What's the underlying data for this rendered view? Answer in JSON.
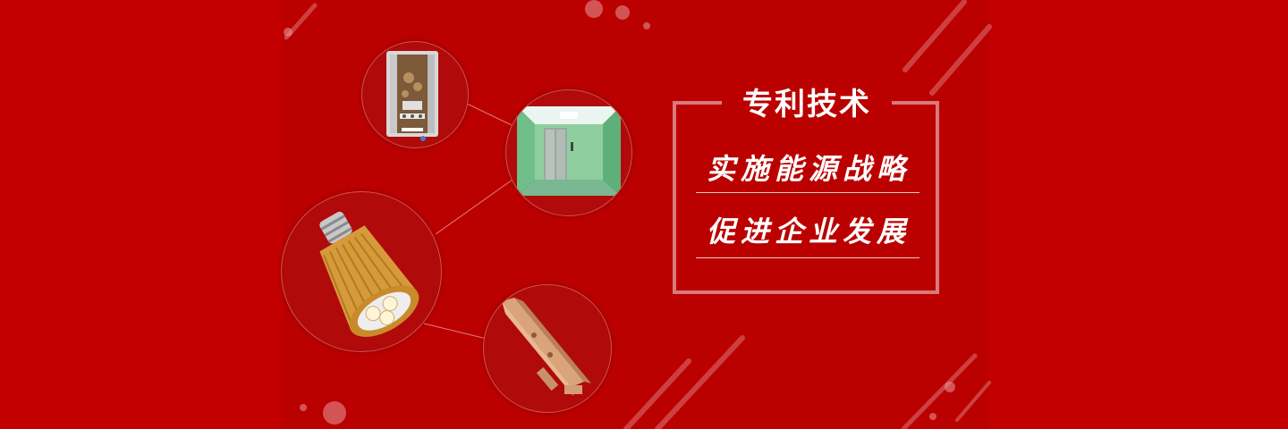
{
  "banner": {
    "panel": {
      "title": "专利技术",
      "lines": [
        "实施能源战略",
        "促进企业发展"
      ]
    },
    "products": [
      {
        "icon": "water-heater-icon"
      },
      {
        "icon": "elevator-cabin-icon"
      },
      {
        "icon": "led-bulb-icon"
      },
      {
        "icon": "metal-bracket-icon"
      }
    ],
    "colors": {
      "background": "#c30000",
      "panel_border": "#d97a7a",
      "text": "#ffffff"
    }
  }
}
